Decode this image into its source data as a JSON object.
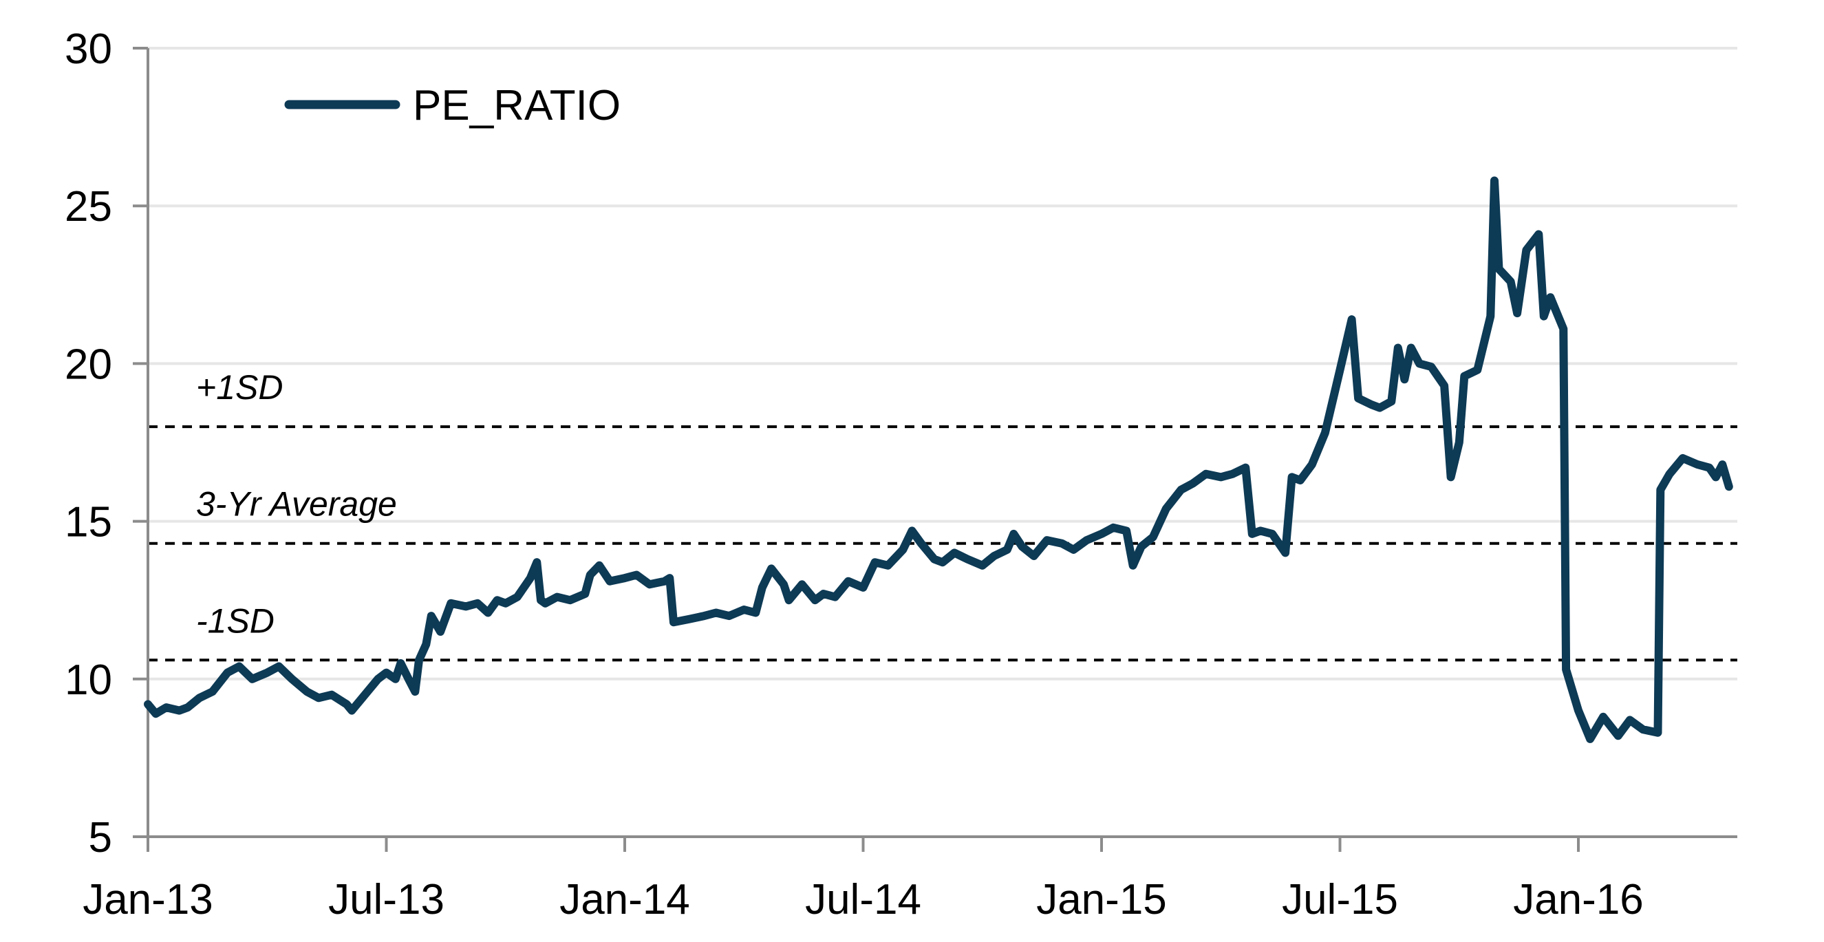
{
  "chart_data": {
    "type": "line",
    "title": "",
    "xlabel": "",
    "ylabel": "",
    "ylim": [
      5,
      30
    ],
    "y_ticks": [
      "5",
      "10",
      "15",
      "20",
      "25",
      "30"
    ],
    "x_ticks": [
      "Jan-13",
      "Jul-13",
      "Jan-14",
      "Jul-14",
      "Jan-15",
      "Jul-15",
      "Jan-16"
    ],
    "xlim": [
      "2013-01",
      "2016-05"
    ],
    "grid": "horizontal",
    "legend": "top-left",
    "series_color": "#0d3a55",
    "reference_color": "#000000",
    "reference_lines": [
      {
        "label": "+1SD",
        "value": 18.0
      },
      {
        "label": "3-Yr Average",
        "value": 14.3
      },
      {
        "label": "-1SD",
        "value": 10.6
      }
    ],
    "series": [
      {
        "name": "PE_RATIO",
        "points": [
          [
            "2013-01",
            9.2
          ],
          [
            "2013-01-07",
            8.9
          ],
          [
            "2013-01-15",
            9.1
          ],
          [
            "2013-01-25",
            9.0
          ],
          [
            "2013-02",
            9.1
          ],
          [
            "2013-02-10",
            9.4
          ],
          [
            "2013-02-20",
            9.6
          ],
          [
            "2013-03",
            10.2
          ],
          [
            "2013-03-10",
            10.4
          ],
          [
            "2013-03-20",
            10.0
          ],
          [
            "2013-04",
            10.2
          ],
          [
            "2013-04-10",
            10.4
          ],
          [
            "2013-04-20",
            10.0
          ],
          [
            "2013-05",
            9.6
          ],
          [
            "2013-05-10",
            9.4
          ],
          [
            "2013-05-20",
            9.5
          ],
          [
            "2013-06",
            9.2
          ],
          [
            "2013-06-05",
            9.0
          ],
          [
            "2013-06-15",
            9.5
          ],
          [
            "2013-06-25",
            10.0
          ],
          [
            "2013-07",
            10.2
          ],
          [
            "2013-07-08",
            10.0
          ],
          [
            "2013-07-12",
            10.5
          ],
          [
            "2013-07-18",
            10.0
          ],
          [
            "2013-07-23",
            9.6
          ],
          [
            "2013-07-26",
            10.6
          ],
          [
            "2013-08",
            11.1
          ],
          [
            "2013-08-05",
            12.0
          ],
          [
            "2013-08-12",
            11.5
          ],
          [
            "2013-08-20",
            12.4
          ],
          [
            "2013-09",
            12.3
          ],
          [
            "2013-09-10",
            12.4
          ],
          [
            "2013-09-18",
            12.1
          ],
          [
            "2013-09-25",
            12.5
          ],
          [
            "2013-10",
            12.4
          ],
          [
            "2013-10-10",
            12.6
          ],
          [
            "2013-10-20",
            13.2
          ],
          [
            "2013-10-25",
            13.7
          ],
          [
            "2013-10-28",
            12.5
          ],
          [
            "2013-11",
            12.4
          ],
          [
            "2013-11-10",
            12.6
          ],
          [
            "2013-11-20",
            12.5
          ],
          [
            "2013-12",
            12.7
          ],
          [
            "2013-12-05",
            13.3
          ],
          [
            "2013-12-12",
            13.6
          ],
          [
            "2013-12-20",
            13.1
          ],
          [
            "2014-01",
            13.2
          ],
          [
            "2014-01-10",
            13.3
          ],
          [
            "2014-01-20",
            13.0
          ],
          [
            "2014-02",
            13.1
          ],
          [
            "2014-02-05",
            13.2
          ],
          [
            "2014-02-08",
            11.8
          ],
          [
            "2014-02-20",
            11.9
          ],
          [
            "2014-03",
            12.0
          ],
          [
            "2014-03-10",
            12.1
          ],
          [
            "2014-03-20",
            12.0
          ],
          [
            "2014-04",
            12.2
          ],
          [
            "2014-04-10",
            12.1
          ],
          [
            "2014-04-15",
            12.9
          ],
          [
            "2014-04-22",
            13.5
          ],
          [
            "2014-05",
            13.0
          ],
          [
            "2014-05-05",
            12.5
          ],
          [
            "2014-05-15",
            13.0
          ],
          [
            "2014-05-25",
            12.5
          ],
          [
            "2014-06",
            12.7
          ],
          [
            "2014-06-10",
            12.6
          ],
          [
            "2014-06-20",
            13.1
          ],
          [
            "2014-07",
            12.9
          ],
          [
            "2014-07-10",
            13.7
          ],
          [
            "2014-07-20",
            13.6
          ],
          [
            "2014-08",
            14.1
          ],
          [
            "2014-08-08",
            14.7
          ],
          [
            "2014-08-15",
            14.3
          ],
          [
            "2014-08-25",
            13.8
          ],
          [
            "2014-09",
            13.7
          ],
          [
            "2014-09-10",
            14.0
          ],
          [
            "2014-09-20",
            13.8
          ],
          [
            "2014-10",
            13.6
          ],
          [
            "2014-10-10",
            13.9
          ],
          [
            "2014-10-20",
            14.1
          ],
          [
            "2014-10-25",
            14.6
          ],
          [
            "2014-11",
            14.2
          ],
          [
            "2014-11-10",
            13.9
          ],
          [
            "2014-11-20",
            14.4
          ],
          [
            "2014-12",
            14.3
          ],
          [
            "2014-12-10",
            14.1
          ],
          [
            "2014-12-20",
            14.4
          ],
          [
            "2015-01",
            14.6
          ],
          [
            "2015-01-10",
            14.8
          ],
          [
            "2015-01-20",
            14.7
          ],
          [
            "2015-01-25",
            13.6
          ],
          [
            "2015-02",
            14.2
          ],
          [
            "2015-02-10",
            14.5
          ],
          [
            "2015-02-20",
            15.4
          ],
          [
            "2015-03",
            16.0
          ],
          [
            "2015-03-10",
            16.2
          ],
          [
            "2015-03-20",
            16.5
          ],
          [
            "2015-04",
            16.4
          ],
          [
            "2015-04-10",
            16.5
          ],
          [
            "2015-04-20",
            16.7
          ],
          [
            "2015-04-25",
            14.6
          ],
          [
            "2015-05",
            14.7
          ],
          [
            "2015-05-10",
            14.6
          ],
          [
            "2015-05-20",
            14.0
          ],
          [
            "2015-05-25",
            16.4
          ],
          [
            "2015-06",
            16.3
          ],
          [
            "2015-06-10",
            16.8
          ],
          [
            "2015-06-20",
            17.8
          ],
          [
            "2015-07",
            19.8
          ],
          [
            "2015-07-10",
            21.4
          ],
          [
            "2015-07-15",
            18.9
          ],
          [
            "2015-07-25",
            18.7
          ],
          [
            "2015-08",
            18.6
          ],
          [
            "2015-08-10",
            18.8
          ],
          [
            "2015-08-15",
            20.5
          ],
          [
            "2015-08-20",
            19.5
          ],
          [
            "2015-08-25",
            20.5
          ],
          [
            "2015-09",
            20.0
          ],
          [
            "2015-09-10",
            19.9
          ],
          [
            "2015-09-20",
            19.3
          ],
          [
            "2015-09-25",
            16.4
          ],
          [
            "2015-10",
            17.5
          ],
          [
            "2015-10-05",
            19.6
          ],
          [
            "2015-10-15",
            19.8
          ],
          [
            "2015-10-25",
            21.5
          ],
          [
            "2015-10-28",
            25.8
          ],
          [
            "2015-11",
            23.0
          ],
          [
            "2015-11-10",
            22.6
          ],
          [
            "2015-11-15",
            21.6
          ],
          [
            "2015-11-22",
            23.6
          ],
          [
            "2015-12",
            24.1
          ],
          [
            "2015-12-05",
            21.5
          ],
          [
            "2015-12-10",
            22.1
          ],
          [
            "2015-12-20",
            21.1
          ],
          [
            "2015-12-22",
            10.3
          ],
          [
            "2016-01",
            9.0
          ],
          [
            "2016-01-10",
            8.1
          ],
          [
            "2016-01-20",
            8.8
          ],
          [
            "2016-02",
            8.2
          ],
          [
            "2016-02-10",
            8.7
          ],
          [
            "2016-02-20",
            8.4
          ],
          [
            "2016-03",
            8.3
          ],
          [
            "2016-03-03",
            16.0
          ],
          [
            "2016-03-10",
            16.5
          ],
          [
            "2016-03-20",
            17.0
          ],
          [
            "2016-04",
            16.8
          ],
          [
            "2016-04-10",
            16.7
          ],
          [
            "2016-04-15",
            16.4
          ],
          [
            "2016-04-20",
            16.8
          ],
          [
            "2016-04-25",
            16.1
          ]
        ]
      }
    ]
  }
}
